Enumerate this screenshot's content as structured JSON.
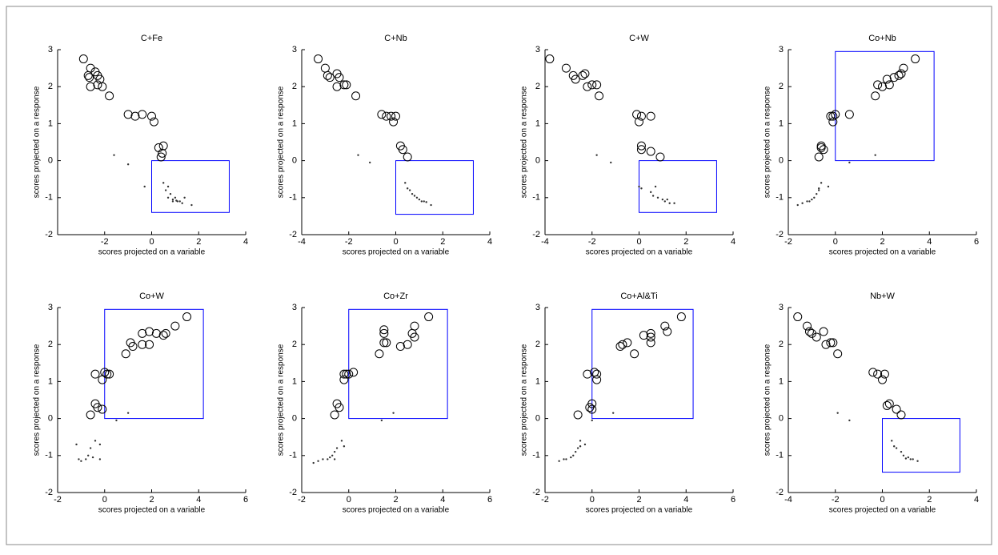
{
  "chart_data": [
    {
      "type": "scatter",
      "title": "C+Fe",
      "x_label": "scores projected on a variable",
      "y_label": "scores projected on a response",
      "xlim": [
        -4,
        4
      ],
      "ylim": [
        -2,
        3
      ],
      "xticks": [
        -2,
        0,
        2,
        4
      ],
      "yticks": [
        -2,
        -1,
        0,
        1,
        2,
        3
      ],
      "series": [
        {
          "color": "#000000",
          "marker": "circle",
          "x": [
            -2.9,
            -2.6,
            -2.7,
            -2.65,
            -2.4,
            -2.3,
            -2.6,
            -2.2,
            -2.3,
            -2.1,
            -1.8,
            -1.0,
            -0.7,
            -0.4,
            0,
            0.1,
            0.3,
            0.5,
            0.45,
            0.4
          ],
          "values": [
            2.75,
            2.5,
            2.3,
            2.25,
            2.4,
            2.3,
            2.0,
            2.2,
            2.05,
            2.0,
            1.75,
            1.25,
            1.2,
            1.25,
            1.2,
            1.05,
            0.35,
            0.4,
            0.2,
            0.1
          ]
        },
        {
          "color": "#333333",
          "marker": "dot",
          "x": [
            -1.6,
            -1.0,
            -0.3,
            0.5,
            0.6,
            0.7,
            0.8,
            0.7,
            0.9,
            1.0,
            1.1,
            1.2,
            1.3,
            1.4,
            1.7,
            0.9,
            1.05
          ],
          "values": [
            0.15,
            -0.1,
            -0.7,
            -0.6,
            -0.8,
            -0.7,
            -0.9,
            -1.0,
            -1.05,
            -1.0,
            -1.1,
            -1.1,
            -1.15,
            -1.0,
            -1.2,
            -1.1,
            -1.08
          ]
        }
      ],
      "box": {
        "x": [
          0,
          3.3
        ],
        "y": [
          -1.4,
          0
        ],
        "color": "#0000ff"
      }
    },
    {
      "type": "scatter",
      "title": "C+Nb",
      "x_label": "scores projected on a variable",
      "y_label": "scores projected on a response",
      "xlim": [
        -4,
        4
      ],
      "ylim": [
        -2,
        3
      ],
      "xticks": [
        -4,
        -2,
        0,
        2,
        4
      ],
      "yticks": [
        -2,
        -1,
        0,
        1,
        2,
        3
      ],
      "series": [
        {
          "color": "#000000",
          "marker": "circle",
          "x": [
            -3.3,
            -3.0,
            -2.9,
            -2.8,
            -2.5,
            -2.4,
            -2.5,
            -2.2,
            -2.1,
            -1.7,
            -0.6,
            -0.4,
            -0.2,
            -0.1,
            0,
            0.2,
            0.3,
            0.5
          ],
          "values": [
            2.75,
            2.5,
            2.3,
            2.25,
            2.35,
            2.25,
            2.0,
            2.05,
            2.05,
            1.75,
            1.25,
            1.2,
            1.2,
            1.05,
            1.2,
            0.4,
            0.3,
            0.1
          ]
        },
        {
          "color": "#333333",
          "marker": "dot",
          "x": [
            -1.6,
            -1.1,
            0.4,
            0.5,
            0.6,
            0.7,
            0.9,
            1.0,
            1.1,
            1.2,
            1.3,
            1.5,
            0.8
          ],
          "values": [
            0.15,
            -0.05,
            -0.6,
            -0.75,
            -0.8,
            -0.9,
            -1.0,
            -1.05,
            -1.1,
            -1.1,
            -1.12,
            -1.2,
            -0.95
          ]
        }
      ],
      "box": {
        "x": [
          0,
          3.3
        ],
        "y": [
          -1.45,
          0
        ],
        "color": "#0000ff"
      }
    },
    {
      "type": "scatter",
      "title": "C+W",
      "x_label": "scores projected on a variable",
      "y_label": "scores projected on a response",
      "xlim": [
        -4,
        4
      ],
      "ylim": [
        -2,
        3
      ],
      "xticks": [
        -4,
        -2,
        0,
        2,
        4
      ],
      "yticks": [
        -2,
        -1,
        0,
        1,
        2,
        3
      ],
      "series": [
        {
          "color": "#000000",
          "marker": "circle",
          "x": [
            -3.8,
            -3.1,
            -2.8,
            -2.7,
            -2.4,
            -2.3,
            -2.2,
            -2.0,
            -1.8,
            -1.7,
            -0.1,
            0.1,
            0.5,
            0,
            0.1,
            0.1,
            0.5,
            0.9
          ],
          "values": [
            2.75,
            2.5,
            2.3,
            2.2,
            2.3,
            2.35,
            2.0,
            2.05,
            2.05,
            1.75,
            1.25,
            1.2,
            1.2,
            1.05,
            0.4,
            0.3,
            0.25,
            0.1
          ]
        },
        {
          "color": "#333333",
          "marker": "dot",
          "x": [
            -1.8,
            -1.2,
            0,
            0.1,
            0.5,
            0.7,
            0.8,
            1.0,
            1.1,
            1.2,
            1.3,
            1.5,
            0.6
          ],
          "values": [
            0.15,
            -0.05,
            -0.7,
            -0.75,
            -0.85,
            -0.7,
            -1.0,
            -1.05,
            -1.1,
            -1.05,
            -1.15,
            -1.15,
            -0.95
          ]
        }
      ],
      "box": {
        "x": [
          0,
          3.3
        ],
        "y": [
          -1.4,
          0
        ],
        "color": "#0000ff"
      }
    },
    {
      "type": "scatter",
      "title": "Co+Nb",
      "x_label": "scores projected on a variable",
      "y_label": "scores projected on a response",
      "xlim": [
        -2,
        6
      ],
      "ylim": [
        -2,
        3
      ],
      "xticks": [
        -2,
        0,
        2,
        4,
        6
      ],
      "yticks": [
        -2,
        -1,
        0,
        1,
        2,
        3
      ],
      "series": [
        {
          "color": "#000000",
          "marker": "circle",
          "x": [
            3.4,
            2.9,
            2.8,
            2.7,
            2.5,
            2.3,
            2.0,
            1.8,
            1.7,
            2.2,
            0.0,
            -0.1,
            -0.1,
            0.6,
            -0.2,
            -0.6,
            -0.5,
            -0.7,
            -0.6
          ],
          "values": [
            2.75,
            2.5,
            2.35,
            2.3,
            2.25,
            2.05,
            2.0,
            2.05,
            1.75,
            2.2,
            1.25,
            1.2,
            1.05,
            1.25,
            1.2,
            0.35,
            0.3,
            0.1,
            0.4
          ]
        },
        {
          "color": "#333333",
          "marker": "dot",
          "x": [
            1.7,
            0.6,
            -0.3,
            -0.6,
            -0.7,
            -0.8,
            -0.9,
            -1.0,
            -1.1,
            -1.2,
            -1.4,
            -1.6,
            -0.7
          ],
          "values": [
            0.15,
            -0.05,
            -0.7,
            -0.6,
            -0.8,
            -0.9,
            -1.0,
            -1.05,
            -1.1,
            -1.1,
            -1.15,
            -1.2,
            -0.75
          ]
        }
      ],
      "box": {
        "x": [
          0,
          4.2
        ],
        "y": [
          0,
          2.95
        ],
        "color": "#0000ff"
      }
    },
    {
      "type": "scatter",
      "title": "Co+W",
      "x_label": "scores projected on a variable",
      "y_label": "scores projected on a response",
      "xlim": [
        -2,
        6
      ],
      "ylim": [
        -2,
        3
      ],
      "xticks": [
        -2,
        0,
        2,
        4,
        6
      ],
      "yticks": [
        -2,
        -1,
        0,
        1,
        2,
        3
      ],
      "series": [
        {
          "color": "#000000",
          "marker": "circle",
          "x": [
            3.5,
            3.0,
            2.6,
            2.5,
            2.2,
            1.9,
            1.9,
            1.6,
            1.6,
            1.2,
            1.1,
            0.9,
            0.0,
            0.1,
            0.2,
            -0.4,
            -0.1,
            -0.4,
            -0.3,
            -0.6,
            -0.1
          ],
          "values": [
            2.75,
            2.5,
            2.3,
            2.25,
            2.3,
            2.35,
            2.0,
            2.3,
            2.0,
            1.95,
            2.05,
            1.75,
            1.25,
            1.2,
            1.2,
            1.2,
            1.05,
            0.4,
            0.3,
            0.1,
            0.25
          ]
        },
        {
          "color": "#333333",
          "marker": "dot",
          "x": [
            1.0,
            0.5,
            -0.2,
            -0.4,
            -0.6,
            -0.7,
            -0.8,
            -1.0,
            -1.1,
            -1.2,
            -0.5,
            -0.2
          ],
          "values": [
            0.15,
            -0.05,
            -0.7,
            -0.6,
            -0.8,
            -1.0,
            -1.1,
            -1.15,
            -1.1,
            -0.7,
            -1.05,
            -1.1
          ]
        }
      ],
      "box": {
        "x": [
          0,
          4.2
        ],
        "y": [
          0,
          2.95
        ],
        "color": "#0000ff"
      }
    },
    {
      "type": "scatter",
      "title": "Co+Zr",
      "x_label": "scores projected on a variable",
      "y_label": "scores projected on a response",
      "xlim": [
        -2,
        6
      ],
      "ylim": [
        -2,
        3
      ],
      "xticks": [
        -2,
        0,
        2,
        4,
        6
      ],
      "yticks": [
        -2,
        -1,
        0,
        1,
        2,
        3
      ],
      "series": [
        {
          "color": "#000000",
          "marker": "circle",
          "x": [
            3.4,
            2.8,
            2.7,
            2.8,
            2.5,
            2.2,
            1.5,
            1.5,
            1.5,
            1.6,
            1.3,
            0.2,
            0.0,
            -0.1,
            -0.2,
            -0.2,
            -0.5,
            -0.4,
            -0.6
          ],
          "values": [
            2.75,
            2.5,
            2.3,
            2.2,
            2.0,
            1.95,
            2.4,
            2.3,
            2.05,
            2.05,
            1.75,
            1.25,
            1.2,
            1.2,
            1.2,
            1.05,
            0.4,
            0.3,
            0.1
          ]
        },
        {
          "color": "#333333",
          "marker": "dot",
          "x": [
            1.9,
            1.4,
            -0.3,
            -0.2,
            -0.5,
            -0.6,
            -0.7,
            -0.8,
            -0.9,
            -1.1,
            -1.3,
            -1.5,
            -0.6
          ],
          "values": [
            0.15,
            -0.05,
            -0.6,
            -0.75,
            -0.8,
            -0.9,
            -1.0,
            -1.05,
            -1.1,
            -1.1,
            -1.15,
            -1.2,
            -1.1
          ]
        }
      ],
      "box": {
        "x": [
          0,
          4.2
        ],
        "y": [
          0,
          2.95
        ],
        "color": "#0000ff"
      }
    },
    {
      "type": "scatter",
      "title": "Co+Al&Ti",
      "x_label": "scores projected on a variable",
      "y_label": "scores projected on a response",
      "xlim": [
        -2,
        6
      ],
      "ylim": [
        -2,
        3
      ],
      "xticks": [
        -2,
        0,
        2,
        4,
        6
      ],
      "yticks": [
        -2,
        -1,
        0,
        1,
        2,
        3
      ],
      "series": [
        {
          "color": "#000000",
          "marker": "circle",
          "x": [
            3.8,
            3.1,
            3.2,
            2.5,
            2.5,
            2.2,
            2.5,
            1.8,
            1.5,
            1.3,
            1.2,
            0.1,
            0.2,
            -0.2,
            0.2,
            0,
            -0.1,
            0,
            -0.6
          ],
          "values": [
            2.75,
            2.5,
            2.35,
            2.3,
            2.2,
            2.25,
            2.05,
            1.75,
            2.05,
            2.0,
            1.95,
            1.25,
            1.2,
            1.2,
            1.05,
            0.4,
            0.3,
            0.25,
            0.1
          ]
        },
        {
          "color": "#333333",
          "marker": "dot",
          "x": [
            0.9,
            0,
            -0.3,
            -0.5,
            -0.6,
            -0.7,
            -0.8,
            -0.9,
            -1.1,
            -1.2,
            -1.4,
            -0.5
          ],
          "values": [
            0.15,
            -0.05,
            -0.7,
            -0.6,
            -0.8,
            -0.9,
            -1.0,
            -1.05,
            -1.1,
            -1.1,
            -1.15,
            -0.75
          ]
        }
      ],
      "box": {
        "x": [
          0,
          4.3
        ],
        "y": [
          0,
          2.95
        ],
        "color": "#0000ff"
      }
    },
    {
      "type": "scatter",
      "title": "Nb+W",
      "x_label": "scores projected on a variable",
      "y_label": "scores projected on a response",
      "xlim": [
        -4,
        4
      ],
      "ylim": [
        -2,
        3
      ],
      "xticks": [
        -4,
        -2,
        0,
        2,
        4
      ],
      "yticks": [
        -2,
        -1,
        0,
        1,
        2,
        3
      ],
      "series": [
        {
          "color": "#000000",
          "marker": "circle",
          "x": [
            -3.6,
            -3.2,
            -3.1,
            -3.0,
            -2.8,
            -2.5,
            -2.4,
            -2.2,
            -2.1,
            -1.9,
            -0.4,
            -0.2,
            0.1,
            0,
            0.3,
            0.2,
            0.6,
            0.8
          ],
          "values": [
            2.75,
            2.5,
            2.35,
            2.3,
            2.2,
            2.35,
            2.0,
            2.05,
            2.05,
            1.75,
            1.25,
            1.2,
            1.2,
            1.05,
            0.4,
            0.35,
            0.25,
            0.1
          ]
        },
        {
          "color": "#333333",
          "marker": "dot",
          "x": [
            -1.9,
            -1.4,
            0.4,
            0.5,
            0.6,
            0.8,
            0.9,
            1.1,
            1.2,
            1.3,
            1.5,
            1.0
          ],
          "values": [
            0.15,
            -0.05,
            -0.6,
            -0.75,
            -0.8,
            -0.9,
            -1.0,
            -1.05,
            -1.1,
            -1.1,
            -1.15,
            -1.08
          ]
        }
      ],
      "box": {
        "x": [
          0,
          3.3
        ],
        "y": [
          -1.45,
          0
        ],
        "color": "#0000ff"
      }
    }
  ]
}
